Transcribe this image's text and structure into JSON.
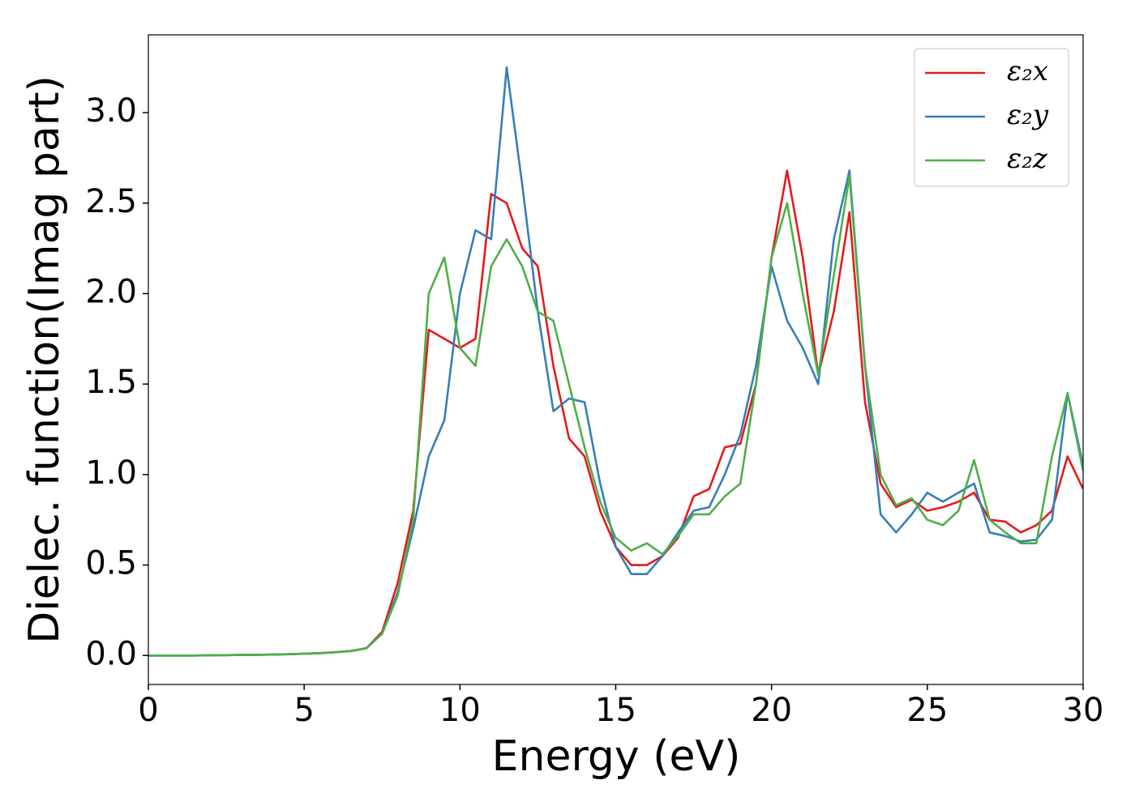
{
  "chart_data": {
    "type": "line",
    "xlabel": "Energy (eV)",
    "ylabel": "Dielec. function(Imag part)",
    "x": [
      0,
      0.5,
      1,
      1.5,
      2,
      2.5,
      3,
      3.5,
      4,
      4.5,
      5,
      5.5,
      6,
      6.5,
      7,
      7.5,
      8,
      8.5,
      9,
      9.5,
      10,
      10.5,
      11,
      11.5,
      12,
      12.5,
      13,
      13.5,
      14,
      14.5,
      15,
      15.5,
      16,
      16.5,
      17,
      17.5,
      18,
      18.5,
      19,
      19.5,
      20,
      20.5,
      21,
      21.5,
      22,
      22.5,
      23,
      23.5,
      24,
      24.5,
      25,
      25.5,
      26,
      26.5,
      27,
      27.5,
      28,
      28.5,
      29,
      29.5,
      30
    ],
    "series": [
      {
        "name": "ε₂x",
        "color": "#e41a1c",
        "values": [
          0,
          0,
          0,
          0,
          0.001,
          0.002,
          0.003,
          0.004,
          0.005,
          0.007,
          0.01,
          0.013,
          0.018,
          0.025,
          0.04,
          0.13,
          0.4,
          0.8,
          1.8,
          1.75,
          1.7,
          1.75,
          2.55,
          2.5,
          2.25,
          2.15,
          1.6,
          1.2,
          1.1,
          0.8,
          0.6,
          0.5,
          0.5,
          0.55,
          0.65,
          0.88,
          0.92,
          1.15,
          1.17,
          1.5,
          2.2,
          2.68,
          2.2,
          1.55,
          1.9,
          2.45,
          1.4,
          0.95,
          0.82,
          0.86,
          0.8,
          0.82,
          0.85,
          0.9,
          0.75,
          0.74,
          0.68,
          0.72,
          0.8,
          1.1,
          0.92
        ]
      },
      {
        "name": "ε₂y",
        "color": "#377eb8",
        "values": [
          0,
          0,
          0,
          0,
          0.001,
          0.002,
          0.003,
          0.004,
          0.005,
          0.007,
          0.01,
          0.013,
          0.018,
          0.025,
          0.04,
          0.12,
          0.35,
          0.7,
          1.1,
          1.3,
          2.0,
          2.35,
          2.3,
          3.25,
          2.6,
          1.9,
          1.35,
          1.42,
          1.4,
          0.95,
          0.6,
          0.45,
          0.45,
          0.55,
          0.68,
          0.8,
          0.82,
          1.0,
          1.22,
          1.6,
          2.15,
          1.85,
          1.7,
          1.5,
          2.3,
          2.68,
          1.6,
          0.78,
          0.68,
          0.78,
          0.9,
          0.85,
          0.9,
          0.95,
          0.68,
          0.66,
          0.63,
          0.64,
          0.75,
          1.45,
          1.05
        ]
      },
      {
        "name": "ε₂z",
        "color": "#4daf4a",
        "values": [
          0,
          0,
          0,
          0,
          0.001,
          0.002,
          0.003,
          0.004,
          0.005,
          0.007,
          0.01,
          0.013,
          0.018,
          0.025,
          0.04,
          0.12,
          0.33,
          0.75,
          2.0,
          2.2,
          1.7,
          1.6,
          2.15,
          2.3,
          2.15,
          1.9,
          1.85,
          1.5,
          1.15,
          0.85,
          0.65,
          0.58,
          0.62,
          0.56,
          0.66,
          0.78,
          0.78,
          0.88,
          0.95,
          1.5,
          2.2,
          2.5,
          2.0,
          1.55,
          2.1,
          2.65,
          1.6,
          1.0,
          0.83,
          0.87,
          0.75,
          0.72,
          0.8,
          1.08,
          0.75,
          0.68,
          0.62,
          0.62,
          1.1,
          1.45,
          1.02
        ]
      }
    ],
    "xlim": [
      0,
      30
    ],
    "ylim": [
      -0.16,
      3.43
    ],
    "xticks": [
      0,
      5,
      10,
      15,
      20,
      25,
      30
    ],
    "yticks": [
      {
        "value": 0,
        "label": "0.0"
      },
      0.5,
      {
        "value": 1,
        "label": "1.0"
      },
      1.5,
      {
        "value": 2,
        "label": "2.0"
      },
      2.5,
      {
        "value": 3,
        "label": "3.0"
      }
    ],
    "legend": "upper right"
  }
}
